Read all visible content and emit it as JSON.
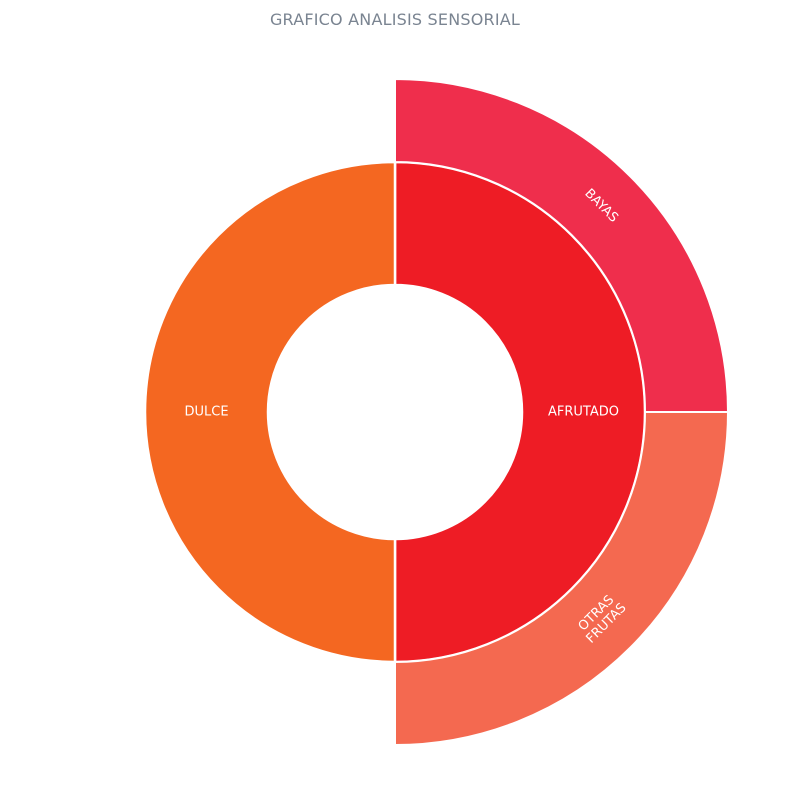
{
  "chart_data": {
    "type": "sunburst",
    "title": "GRAFICO ANALISIS SENSORIAL",
    "colors": {
      "segment_border": "#ffffff",
      "background": "#ffffff",
      "title": "#7a8491",
      "label": "#ffffff"
    },
    "rings": [
      {
        "level": 1,
        "segments": [
          {
            "key": "afrutado",
            "label": "AFRUTADO",
            "value": 2,
            "color": "#ee1c25"
          },
          {
            "key": "dulce",
            "label": "DULCE",
            "value": 2,
            "color": "#f46721"
          }
        ]
      },
      {
        "level": 2,
        "segments": [
          {
            "key": "bayas",
            "parent": "afrutado",
            "label": "BAYAS",
            "value": 1,
            "color": "#ef2e4c"
          },
          {
            "key": "otras",
            "parent": "afrutado",
            "label": "OTRAS FRUTAS",
            "value": 1,
            "color": "#f46950"
          }
        ]
      }
    ]
  }
}
